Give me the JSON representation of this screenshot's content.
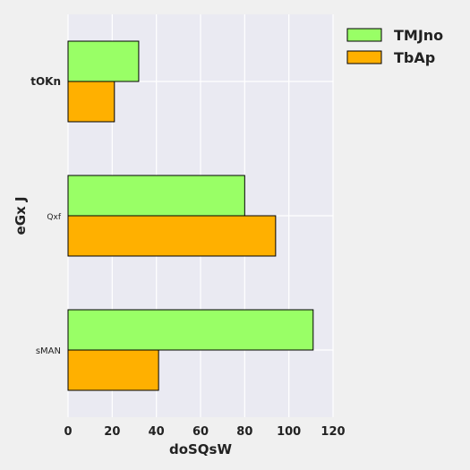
{
  "chart_data": {
    "type": "bar",
    "orientation": "horizontal",
    "title": "",
    "xlabel": "doSQsW",
    "ylabel": "eGx J",
    "categories": [
      "tOKn",
      "Qxf",
      "sMAN"
    ],
    "series": [
      {
        "name": "TMJno",
        "color": "#99ff66",
        "values": [
          32,
          80,
          111
        ]
      },
      {
        "name": "TbAp",
        "color": "#ffb000",
        "values": [
          21,
          94,
          41
        ]
      }
    ],
    "xlim": [
      0,
      120
    ],
    "xticks": [
      0,
      20,
      40,
      60,
      80,
      100,
      120
    ],
    "grid": true,
    "legend_position": "top-right",
    "plot_background": "#eaeaf2"
  }
}
